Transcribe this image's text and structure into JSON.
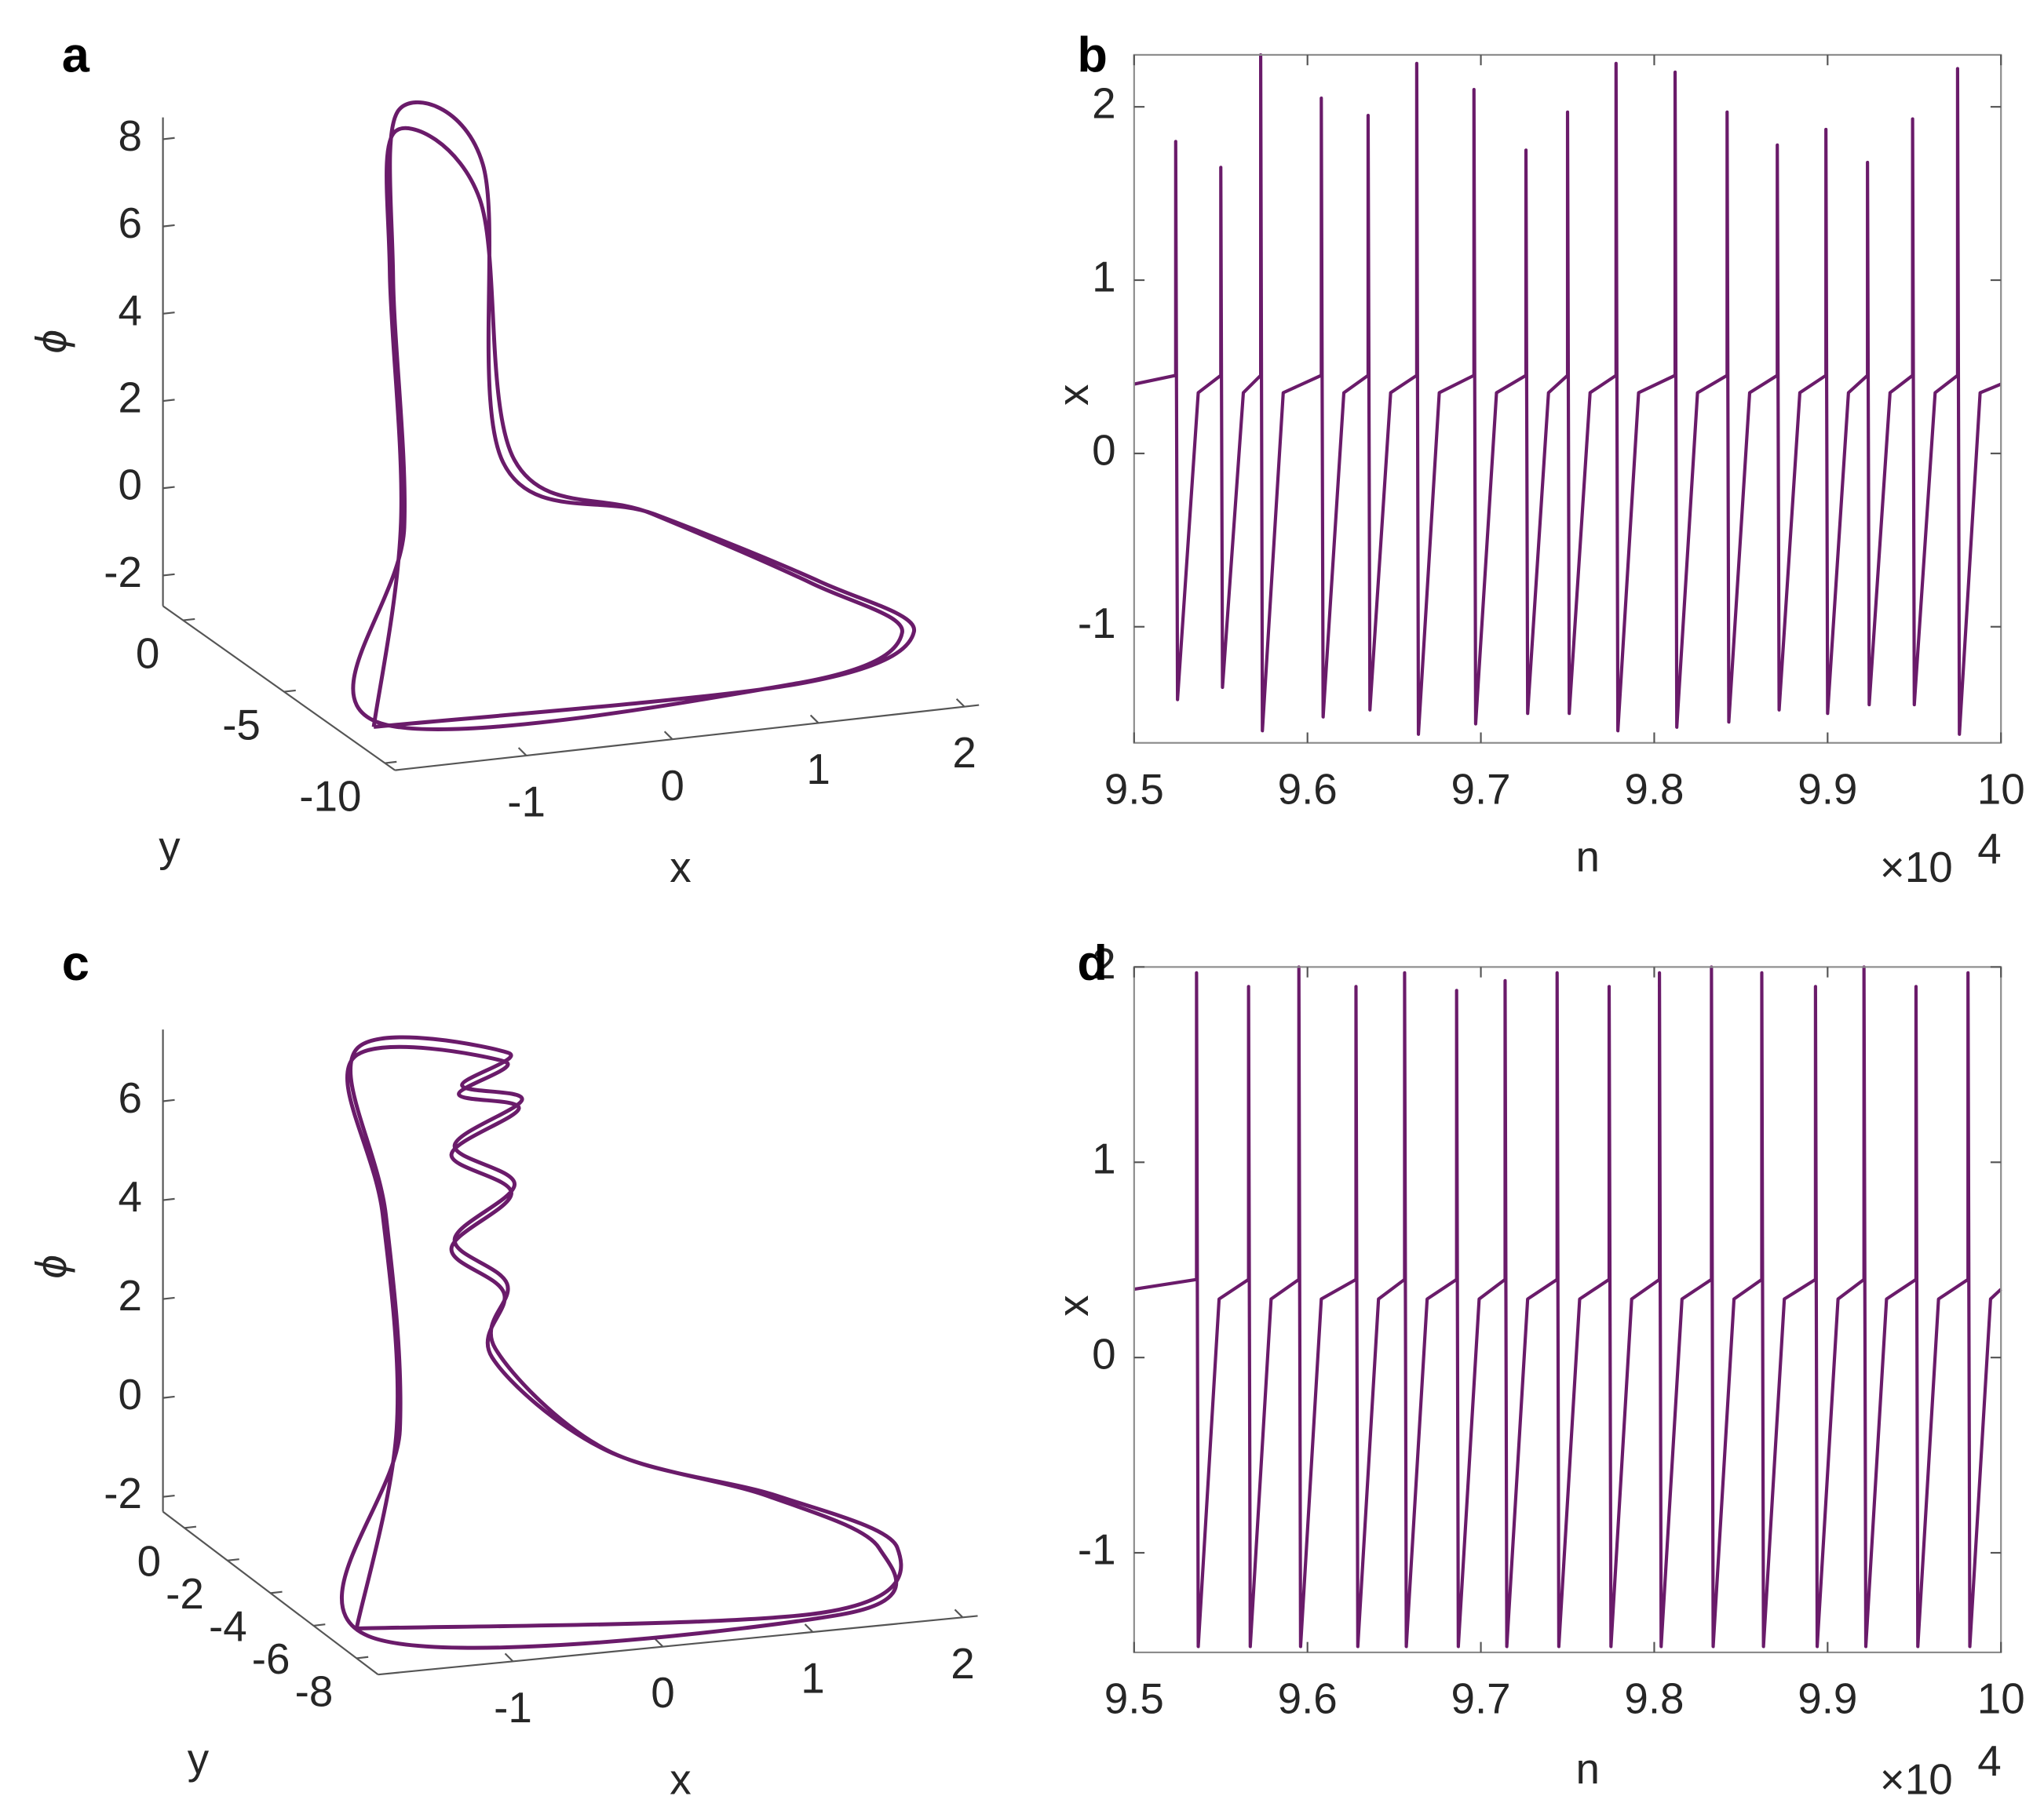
{
  "chart_data": [
    {
      "type": "line3d",
      "panel_label": "a",
      "color": "#6a1b6a",
      "xlabel": "x",
      "ylabel": "y",
      "zlabel": "ϕ",
      "xlim": [
        -1.9,
        2.1
      ],
      "ylim": [
        -10.5,
        1
      ],
      "zlim": [
        -2.7,
        8.5
      ],
      "xticks": [
        -1,
        0,
        1,
        2
      ],
      "yticks": [
        0,
        -5,
        -10
      ],
      "zticks": [
        -2,
        0,
        2,
        4,
        6,
        8
      ],
      "x": [
        -1.7,
        1.2,
        2.0,
        1.5,
        0.5,
        -0.4,
        -0.4,
        -0.7,
        -0.6,
        -0.8,
        -1.75,
        1.1,
        1.85,
        1.4,
        0.45,
        -0.35,
        -0.45,
        -0.75,
        -0.65,
        -0.85,
        -1.7
      ],
      "y": [
        -8,
        -8,
        -8,
        -7,
        -6,
        -5,
        -4,
        -2,
        -1,
        -3,
        -8.5,
        -8.5,
        -8.5,
        -7.3,
        -6.2,
        -5.2,
        -4.2,
        -2.2,
        -1.2,
        -3.2,
        -8
      ],
      "z": [
        -2.6,
        -2.7,
        -1.8,
        -0.8,
        0.8,
        2.0,
        8.5,
        9.2,
        5,
        0,
        -2.3,
        -2.5,
        -1.6,
        -0.7,
        0.9,
        2.1,
        7.8,
        8.8,
        5.2,
        0.2,
        -2.6
      ]
    },
    {
      "type": "line",
      "panel_label": "b",
      "color": "#6a1b6a",
      "xlabel": "n",
      "ylabel": "x",
      "x_multiplier": "×10",
      "x_exponent": "4",
      "xlim": [
        9.5,
        10
      ],
      "ylim": [
        -1.67,
        2.3
      ],
      "xticks": [
        9.5,
        9.6,
        9.7,
        9.8,
        9.9,
        10
      ],
      "yticks": [
        -1,
        0,
        1,
        2
      ],
      "x": [
        9.5,
        9.524,
        9.524,
        9.525,
        9.537,
        9.55,
        9.55,
        9.551,
        9.563,
        9.573,
        9.573,
        9.574,
        9.586,
        9.608,
        9.608,
        9.609,
        9.621,
        9.635,
        9.635,
        9.636,
        9.648,
        9.663,
        9.663,
        9.664,
        9.676,
        9.696,
        9.696,
        9.697,
        9.709,
        9.726,
        9.726,
        9.727,
        9.739,
        9.75,
        9.75,
        9.751,
        9.763,
        9.778,
        9.778,
        9.779,
        9.791,
        9.812,
        9.812,
        9.813,
        9.825,
        9.842,
        9.842,
        9.843,
        9.855,
        9.871,
        9.871,
        9.872,
        9.884,
        9.899,
        9.899,
        9.9,
        9.912,
        9.923,
        9.923,
        9.924,
        9.936,
        9.949,
        9.949,
        9.95,
        9.962,
        9.975,
        9.975,
        9.976,
        9.988,
        10
      ],
      "values": [
        0.4,
        0.45,
        1.8,
        -1.42,
        0.35,
        0.45,
        1.65,
        -1.35,
        0.35,
        0.45,
        2.3,
        -1.6,
        0.35,
        0.45,
        2.05,
        -1.52,
        0.35,
        0.45,
        1.95,
        -1.48,
        0.35,
        0.45,
        2.25,
        -1.62,
        0.35,
        0.45,
        2.1,
        -1.56,
        0.35,
        0.45,
        1.75,
        -1.5,
        0.35,
        0.45,
        1.97,
        -1.5,
        0.35,
        0.45,
        2.25,
        -1.6,
        0.35,
        0.45,
        2.2,
        -1.58,
        0.35,
        0.45,
        1.97,
        -1.55,
        0.35,
        0.45,
        1.78,
        -1.48,
        0.35,
        0.45,
        1.87,
        -1.5,
        0.35,
        0.45,
        1.68,
        -1.45,
        0.35,
        0.45,
        1.93,
        -1.45,
        0.35,
        0.45,
        2.22,
        -1.62,
        0.35,
        0.4
      ]
    },
    {
      "type": "line3d",
      "panel_label": "c",
      "color": "#6a1b6a",
      "xlabel": "x",
      "ylabel": "y",
      "zlabel": "ϕ",
      "xlim": [
        -1.9,
        2.1
      ],
      "ylim": [
        -9,
        1
      ],
      "zlim": [
        -2.3,
        7.45
      ],
      "xticks": [
        -1,
        0,
        1,
        2
      ],
      "yticks": [
        0,
        -2,
        -4,
        -6,
        -8
      ],
      "zticks": [
        -2,
        0,
        2,
        4,
        6
      ],
      "x": [
        -1.9,
        1.2,
        1.85,
        1.2,
        0.2,
        -0.4,
        -0.25,
        -0.6,
        -0.2,
        -0.6,
        -0.15,
        -0.55,
        -0.1,
        -0.9,
        -0.7,
        -0.75,
        -1.85,
        1.3,
        1.7,
        1.1,
        0.15,
        -0.45,
        -0.3,
        -0.65,
        -0.25,
        -0.65,
        -0.2,
        -0.6,
        -0.15,
        -0.95,
        -0.75,
        -0.8,
        -1.9
      ],
      "y": [
        -8,
        -8,
        -7,
        -6,
        -5,
        -4,
        -3.5,
        -3.5,
        -3.5,
        -3.5,
        -3.5,
        -3.5,
        -2.5,
        -1,
        -1,
        -2,
        -8.2,
        -8.2,
        -7.2,
        -6.2,
        -5.2,
        -4.2,
        -3.7,
        -3.7,
        -3.7,
        -3.7,
        -3.7,
        -3.7,
        -2.7,
        -1.2,
        -1.2,
        -2.2,
        -8
      ],
      "z": [
        -1.7,
        -2.3,
        -1.5,
        -0.6,
        0.3,
        2.2,
        3.3,
        4.3,
        5.3,
        6.2,
        7.0,
        7.4,
        7.6,
        7.4,
        4,
        0,
        -1.8,
        -2.3,
        -1.4,
        -0.5,
        0.4,
        2.1,
        3.2,
        4.2,
        5.2,
        6.1,
        6.9,
        7.3,
        7.5,
        7.3,
        4.1,
        0.1,
        -1.7
      ]
    },
    {
      "type": "line",
      "panel_label": "d",
      "color": "#6a1b6a",
      "xlabel": "n",
      "ylabel": "x",
      "x_multiplier": "×10",
      "x_exponent": "4",
      "xlim": [
        9.5,
        10
      ],
      "ylim": [
        -1.51,
        2
      ],
      "xticks": [
        9.5,
        9.6,
        9.7,
        9.8,
        9.9,
        10
      ],
      "yticks": [
        -1,
        0,
        1,
        2
      ],
      "x": [
        9.5,
        9.536,
        9.536,
        9.537,
        9.549,
        9.566,
        9.566,
        9.567,
        9.579,
        9.595,
        9.595,
        9.596,
        9.608,
        9.628,
        9.628,
        9.629,
        9.641,
        9.656,
        9.656,
        9.657,
        9.669,
        9.686,
        9.686,
        9.687,
        9.699,
        9.714,
        9.714,
        9.715,
        9.727,
        9.744,
        9.744,
        9.745,
        9.757,
        9.774,
        9.774,
        9.775,
        9.787,
        9.803,
        9.803,
        9.804,
        9.816,
        9.833,
        9.833,
        9.834,
        9.846,
        9.862,
        9.862,
        9.863,
        9.875,
        9.893,
        9.893,
        9.894,
        9.906,
        9.921,
        9.921,
        9.922,
        9.934,
        9.951,
        9.951,
        9.952,
        9.964,
        9.981,
        9.981,
        9.982,
        9.994,
        10
      ],
      "values": [
        0.35,
        0.4,
        1.97,
        -1.48,
        0.3,
        0.4,
        1.9,
        -1.48,
        0.3,
        0.4,
        2.0,
        -1.48,
        0.3,
        0.4,
        1.9,
        -1.48,
        0.3,
        0.4,
        1.97,
        -1.48,
        0.3,
        0.4,
        1.88,
        -1.48,
        0.3,
        0.4,
        1.93,
        -1.48,
        0.3,
        0.4,
        1.97,
        -1.48,
        0.3,
        0.4,
        1.9,
        -1.48,
        0.3,
        0.4,
        1.97,
        -1.48,
        0.3,
        0.4,
        2.0,
        -1.48,
        0.3,
        0.4,
        1.97,
        -1.48,
        0.3,
        0.4,
        1.9,
        -1.48,
        0.3,
        0.4,
        2.0,
        -1.48,
        0.3,
        0.4,
        1.9,
        -1.48,
        0.3,
        0.4,
        1.97,
        -1.48,
        0.3,
        0.35
      ]
    }
  ]
}
